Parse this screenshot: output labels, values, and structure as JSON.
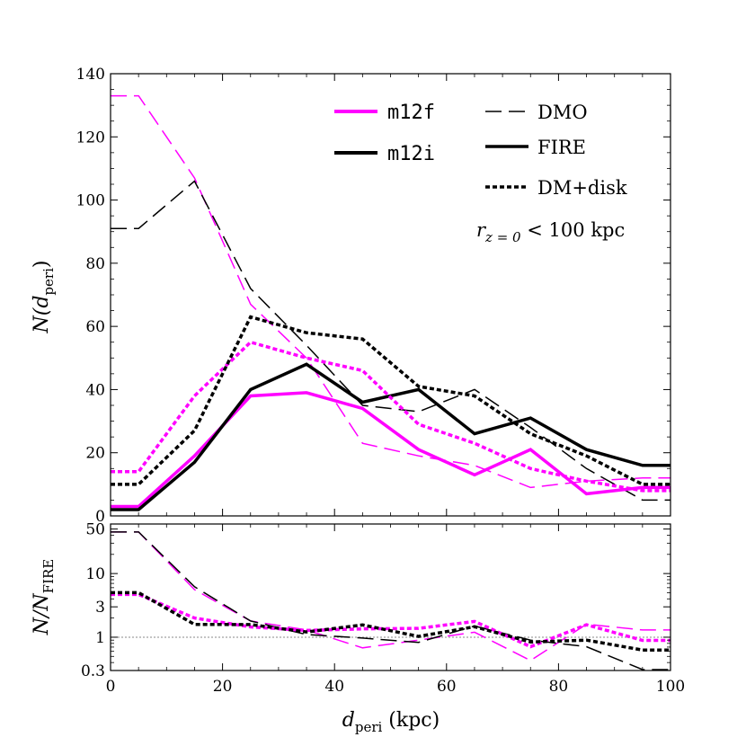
{
  "chart_data": [
    {
      "type": "line",
      "panel": "top",
      "ylabel_parts": {
        "main": "N(d",
        "sub": "peri",
        "close": ")"
      },
      "ylim": [
        0,
        140
      ],
      "yticks": [
        0,
        20,
        40,
        60,
        80,
        100,
        120,
        140
      ],
      "xlim": [
        0,
        100
      ],
      "annotation": {
        "pre": "r",
        "sub": "z = 0",
        "post": " < 100 kpc"
      },
      "legend": {
        "placement": "top-right",
        "hosts": [
          {
            "name": "m12f",
            "color": "#ff00ff"
          },
          {
            "name": "m12i",
            "color": "#000000"
          }
        ],
        "styles": [
          {
            "name": "DMO",
            "dash": "long"
          },
          {
            "name": "FIRE",
            "dash": "solid"
          },
          {
            "name": "DM+disk",
            "dash": "short"
          }
        ]
      },
      "x": [
        0,
        5,
        15,
        25,
        35,
        45,
        55,
        65,
        75,
        85,
        95,
        100
      ],
      "series": [
        {
          "name": "m12f DMO",
          "color": "#ff00ff",
          "style": "DMO",
          "values": [
            133,
            133,
            107,
            67,
            50,
            23,
            19,
            16,
            9,
            11,
            12,
            12
          ]
        },
        {
          "name": "m12i DMO",
          "color": "#000000",
          "style": "DMO",
          "values": [
            91,
            91,
            106,
            72,
            54,
            35,
            33,
            40,
            28,
            15,
            5,
            5
          ]
        },
        {
          "name": "m12f FIRE",
          "color": "#ff00ff",
          "style": "FIRE",
          "values": [
            3,
            3,
            19,
            38,
            39,
            34,
            21,
            13,
            21,
            7,
            9,
            9
          ]
        },
        {
          "name": "m12i FIRE",
          "color": "#000000",
          "style": "FIRE",
          "values": [
            2,
            2,
            17,
            40,
            48,
            36,
            40,
            26,
            31,
            21,
            16,
            16
          ]
        },
        {
          "name": "m12f DM+disk",
          "color": "#ff00ff",
          "style": "DM+disk",
          "values": [
            14,
            14,
            38,
            55,
            50,
            46,
            29,
            23,
            15,
            11,
            8,
            8
          ]
        },
        {
          "name": "m12i DM+disk",
          "color": "#000000",
          "style": "DM+disk",
          "values": [
            10,
            10,
            27,
            63,
            58,
            56,
            41,
            38,
            26,
            19,
            10,
            10
          ]
        }
      ]
    },
    {
      "type": "line",
      "panel": "bottom",
      "yscale": "log",
      "ylabel_parts": {
        "main": "N/N",
        "sub": "FIRE"
      },
      "xlabel_parts": {
        "main": "d",
        "sub": "peri",
        "post": " (kpc)"
      },
      "ylim": [
        0.3,
        60
      ],
      "yticks": [
        0.3,
        1,
        3,
        10,
        50
      ],
      "ytick_labels": [
        "0.3",
        "1",
        "3",
        "10",
        "50"
      ],
      "xlim": [
        0,
        100
      ],
      "xticks": [
        0,
        20,
        40,
        60,
        80,
        100
      ],
      "reference_line": 1,
      "x": [
        0,
        5,
        15,
        25,
        35,
        45,
        55,
        65,
        75,
        85,
        95,
        100
      ],
      "series": [
        {
          "name": "m12f DMO / FIRE",
          "color": "#ff00ff",
          "style": "DMO",
          "values": [
            45,
            45,
            5.6,
            1.8,
            1.3,
            0.68,
            0.9,
            1.2,
            0.43,
            1.6,
            1.3,
            1.3
          ]
        },
        {
          "name": "m12i DMO / FIRE",
          "color": "#000000",
          "style": "DMO",
          "values": [
            45,
            45,
            6.2,
            1.8,
            1.1,
            0.97,
            0.83,
            1.5,
            0.9,
            0.71,
            0.31,
            0.31
          ]
        },
        {
          "name": "m12f DM+disk / FIRE",
          "color": "#ff00ff",
          "style": "DM+disk",
          "values": [
            4.7,
            4.7,
            2.0,
            1.45,
            1.28,
            1.35,
            1.38,
            1.77,
            0.71,
            1.57,
            0.89,
            0.89
          ]
        },
        {
          "name": "m12i DM+disk / FIRE",
          "color": "#000000",
          "style": "DM+disk",
          "values": [
            5.0,
            5.0,
            1.59,
            1.58,
            1.21,
            1.56,
            1.03,
            1.46,
            0.84,
            0.9,
            0.63,
            0.63
          ]
        }
      ]
    }
  ]
}
